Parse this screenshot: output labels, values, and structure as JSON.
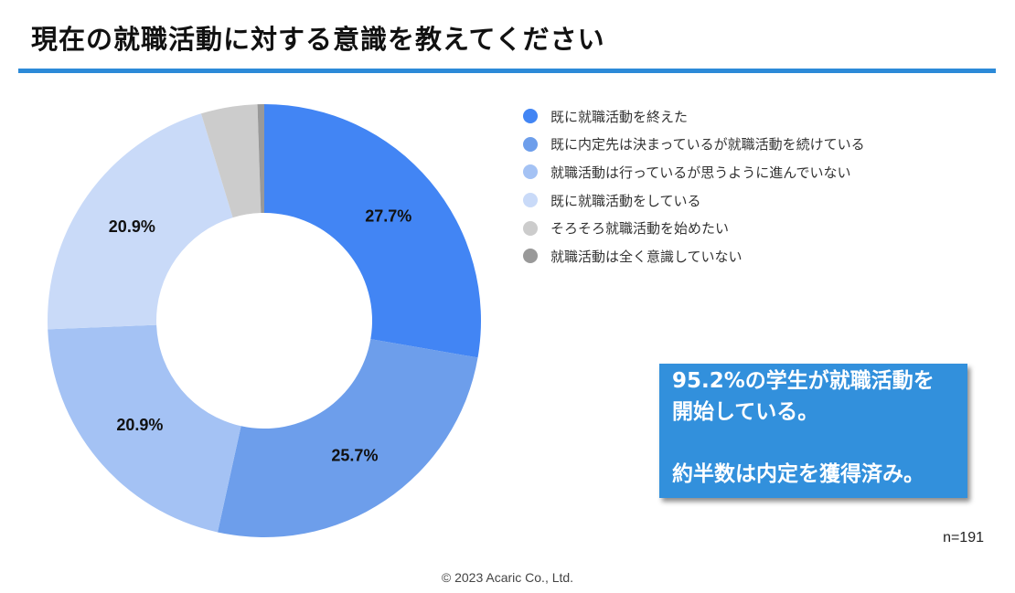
{
  "title": "現在の就職活動に対する意識を教えてください",
  "chart_data": {
    "type": "pie",
    "style": "donut",
    "series": [
      {
        "name": "既に就職活動を終えた",
        "value": 27.7,
        "label": "27.7%",
        "color": "#4285f4"
      },
      {
        "name": "既に内定先は決まっているが就職活動を続けている",
        "value": 25.7,
        "label": "25.7%",
        "color": "#6d9eeb"
      },
      {
        "name": "就職活動は行っているが思うように進んでいない",
        "value": 20.9,
        "label": "20.9%",
        "color": "#a4c2f4"
      },
      {
        "name": "既に就職活動をしている",
        "value": 20.9,
        "label": "20.9%",
        "color": "#c9daf8"
      },
      {
        "name": "そろそろ就職活動を始めたい",
        "value": 4.2,
        "label": "",
        "color": "#cccccc"
      },
      {
        "name": "就職活動は全く意識していない",
        "value": 0.5,
        "label": "",
        "color": "#999999"
      }
    ],
    "legend_position": "right"
  },
  "callout": {
    "line1": "95.2%の学生が就職活動を",
    "line2": "開始している。",
    "line3": "約半数は内定を獲得済み。",
    "color": "#3290dc"
  },
  "sample_size": "n=191",
  "footer": "© 2023 Acaric Co., Ltd."
}
